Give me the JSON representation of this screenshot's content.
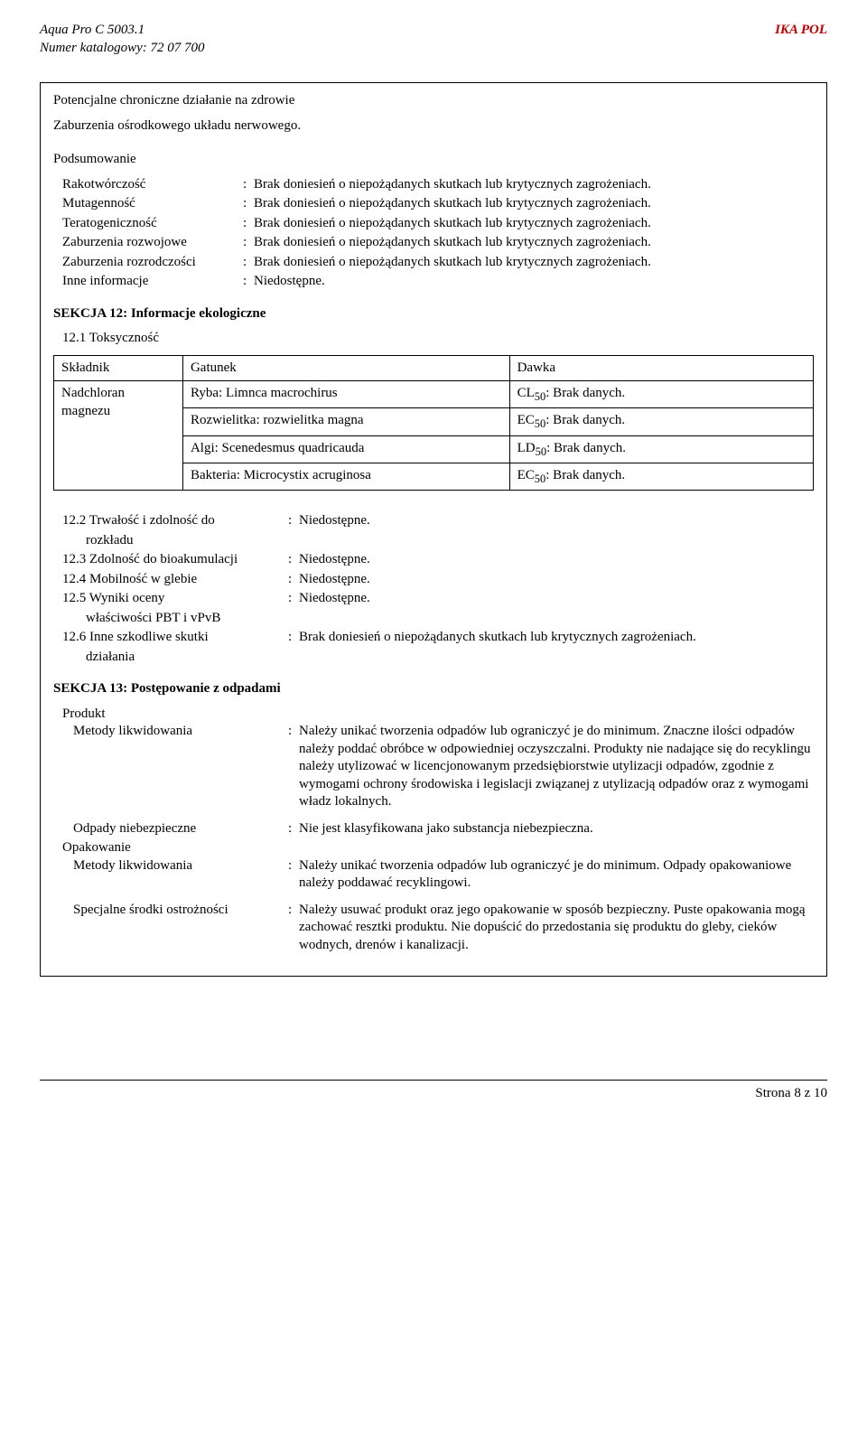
{
  "header": {
    "product": "Aqua Pro C 5003.1",
    "catalog_label": "Numer katalogowy: 72 07 700",
    "brand": "IKA POL"
  },
  "section_chronic_title": "Potencjalne chroniczne działanie na zdrowie",
  "cns_text": "Zaburzenia ośrodkowego układu nerwowego.",
  "summary_heading": "Podsumowanie",
  "no_reports": "Brak doniesień o niepożądanych skutkach lub krytycznych zagrożeniach.",
  "unavailable": "Niedostępne.",
  "summary": {
    "cancer_label": "Rakotwórczość",
    "muta_label": "Mutagenność",
    "tera_label": "Teratogeniczność",
    "dev_label": "Zaburzenia rozwojowe",
    "repro_label": "Zaburzenia rozrodczości",
    "other_label": "Inne informacje"
  },
  "sec12": {
    "title": "SEKCJA 12: Informacje ekologiczne",
    "s12_1": "12.1 Toksyczność",
    "cols": {
      "a": "Składnik",
      "b": "Gatunek",
      "c": "Dawka"
    },
    "ingredient": "Nadchloran magnezu",
    "rows": [
      {
        "species": "Ryba: Limnca macrochirus",
        "dose_prefix": "CL",
        "dose_sub": "50",
        "dose_suffix": ": Brak danych."
      },
      {
        "species": "Rozwielitka: rozwielitka magna",
        "dose_prefix": "EC",
        "dose_sub": "50",
        "dose_suffix": ": Brak danych."
      },
      {
        "species": "Algi: Scenedesmus quadricauda",
        "dose_prefix": "LD",
        "dose_sub": "50",
        "dose_suffix": ": Brak danych."
      },
      {
        "species": "Bakteria: Microcystix acruginosa",
        "dose_prefix": "EC",
        "dose_sub": "50",
        "dose_suffix": ": Brak danych."
      }
    ],
    "s12_2a": "12.2 Trwałość i zdolność do",
    "s12_2b": "rozkładu",
    "s12_3": "12.3 Zdolność do bioakumulacji",
    "s12_4": "12.4 Mobilność w glebie",
    "s12_5a": "12.5 Wyniki oceny",
    "s12_5b": "właściwości PBT i vPvB",
    "s12_6a": "12.6 Inne szkodliwe skutki",
    "s12_6b": "działania"
  },
  "sec13": {
    "title": "SEKCJA 13: Postępowanie z odpadami",
    "product_label": "Produkt",
    "method_label": "Metody likwidowania",
    "method_text": "Należy unikać tworzenia odpadów lub ograniczyć je do minimum. Znaczne ilości odpadów należy poddać obróbce w odpowiedniej oczyszczalni. Produkty nie nadające się do recyklingu należy utylizować w licencjonowanym przedsiębiorstwie utylizacji odpadów, zgodnie z wymogami ochrony środowiska i legislacji związanej z utylizacją odpadów oraz z wymogami władz lokalnych.",
    "haz_label": "Odpady niebezpieczne",
    "haz_text": "Nie jest klasyfikowana jako substancja niebezpieczna.",
    "pack_label": "Opakowanie",
    "pack_method_text": "Należy unikać tworzenia odpadów lub ograniczyć je do minimum. Odpady opakowaniowe należy poddawać recyklingowi.",
    "prec_label": "Specjalne środki ostrożności",
    "prec_text": "Należy usuwać produkt oraz jego opakowanie w sposób bezpieczny. Puste opakowania mogą zachować resztki produktu. Nie dopuścić do przedostania się produktu do gleby, cieków wodnych, drenów i kanalizacji."
  },
  "footer": {
    "page": "Strona 8 z 10"
  }
}
